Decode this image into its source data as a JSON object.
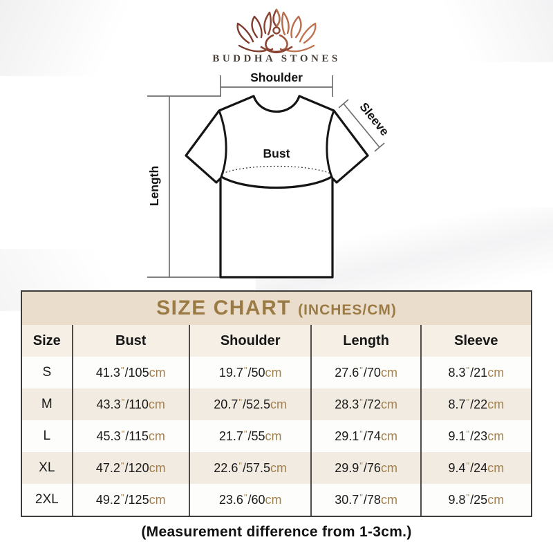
{
  "brand": {
    "name": "BUDDHA STONES"
  },
  "diagram": {
    "shoulder_label": "Shoulder",
    "sleeve_label": "Sleeve",
    "bust_label": "Bust",
    "length_label": "Length"
  },
  "table": {
    "title": "SIZE CHART",
    "title_suffix": "(INCHES/CM)",
    "columns": [
      "Size",
      "Bust",
      "Shoulder",
      "Length",
      "Sleeve"
    ],
    "symbols": {
      "inch": "\"",
      "slash": "/",
      "cm": "cm"
    },
    "rows": [
      {
        "size": "S",
        "bust": {
          "in": "41.3",
          "cm": "105"
        },
        "shoulder": {
          "in": "19.7",
          "cm": "50"
        },
        "length": {
          "in": "27.6",
          "cm": "70"
        },
        "sleeve": {
          "in": "8.3",
          "cm": "21"
        }
      },
      {
        "size": "M",
        "bust": {
          "in": "43.3",
          "cm": "110"
        },
        "shoulder": {
          "in": "20.7",
          "cm": "52.5"
        },
        "length": {
          "in": "28.3",
          "cm": "72"
        },
        "sleeve": {
          "in": "8.7",
          "cm": "22"
        }
      },
      {
        "size": "L",
        "bust": {
          "in": "45.3",
          "cm": "115"
        },
        "shoulder": {
          "in": "21.7",
          "cm": "55"
        },
        "length": {
          "in": "29.1",
          "cm": "74"
        },
        "sleeve": {
          "in": "9.1",
          "cm": "23"
        }
      },
      {
        "size": "XL",
        "bust": {
          "in": "47.2",
          "cm": "120"
        },
        "shoulder": {
          "in": "22.6",
          "cm": "57.5"
        },
        "length": {
          "in": "29.9",
          "cm": "76"
        },
        "sleeve": {
          "in": "9.4",
          "cm": "24"
        }
      },
      {
        "size": "2XL",
        "bust": {
          "in": "49.2",
          "cm": "125"
        },
        "shoulder": {
          "in": "23.6",
          "cm": "60"
        },
        "length": {
          "in": "30.7",
          "cm": "78"
        },
        "sleeve": {
          "in": "9.8",
          "cm": "25"
        }
      }
    ]
  },
  "footer": {
    "note": "(Measurement difference from 1-3cm.)"
  },
  "colors": {
    "title_text": "#9b7b45",
    "title_band_bg": "#ebddcb",
    "header_bg": "#f6efe6",
    "row_alt_bg": "#f2ebe1",
    "unit_accent": "#a3814e",
    "logo_dark": "#7d3a2c",
    "logo_light": "#bf7350",
    "table_border": "#3e3c3a"
  }
}
